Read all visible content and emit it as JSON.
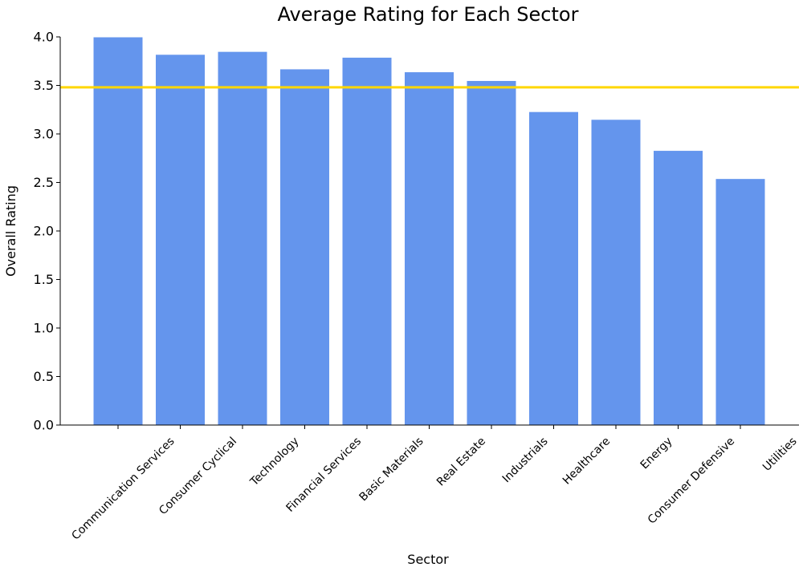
{
  "chart_data": {
    "type": "bar",
    "title": "Average Rating for Each Sector",
    "xlabel": "Sector",
    "ylabel": "Overall Rating",
    "categories": [
      "Communication Services",
      "Consumer Cyclical",
      "Technology",
      "Financial Services",
      "Basic Materials",
      "Real Estate",
      "Industrials",
      "Healthcare",
      "Energy",
      "Consumer Defensive",
      "Utilities"
    ],
    "values": [
      4.0,
      3.82,
      3.85,
      3.67,
      3.79,
      3.64,
      3.55,
      3.23,
      3.15,
      2.83,
      2.54
    ],
    "ylim": [
      0,
      4.0
    ],
    "yticks": [
      "0.0",
      "0.5",
      "1.0",
      "1.5",
      "2.0",
      "2.5",
      "3.0",
      "3.5",
      "4.0"
    ],
    "reference_line": {
      "value": 3.48,
      "color": "#FFD700"
    },
    "bar_color": "#6495ED",
    "grid": false,
    "legend": "none"
  }
}
